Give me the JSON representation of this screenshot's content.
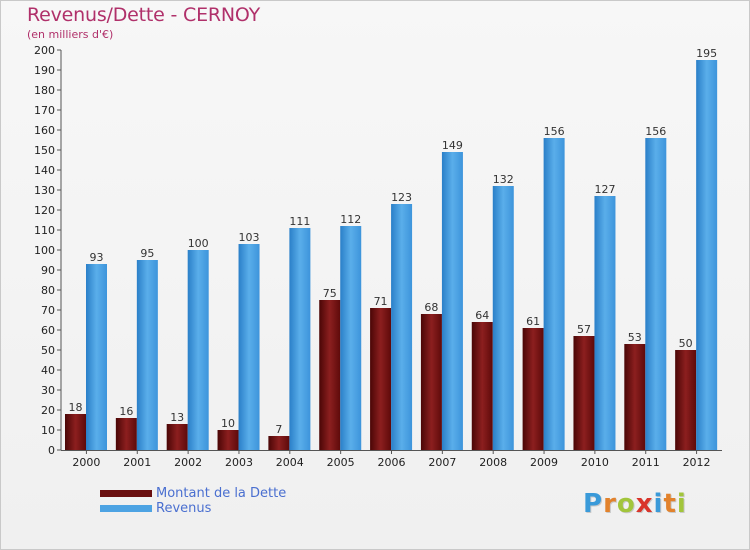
{
  "chart_data": {
    "type": "bar",
    "title": "Revenus/Dette - CERNOY",
    "subtitle": "(en milliers d'€)",
    "categories": [
      "2000",
      "2001",
      "2002",
      "2003",
      "2004",
      "2005",
      "2006",
      "2007",
      "2008",
      "2009",
      "2010",
      "2011",
      "2012"
    ],
    "series": [
      {
        "name": "Montant de la Dette",
        "color": "#7a1515",
        "values": [
          18,
          16,
          13,
          10,
          7,
          75,
          71,
          68,
          64,
          61,
          57,
          53,
          50
        ]
      },
      {
        "name": "Revenus",
        "color": "#4da3e3",
        "values": [
          93,
          95,
          100,
          103,
          111,
          112,
          123,
          149,
          132,
          156,
          127,
          156,
          195
        ]
      }
    ],
    "ylim": [
      0,
      200
    ],
    "ytick_step": 10,
    "xlabel": "",
    "ylabel": "",
    "grid": false,
    "legend_position": "bottom-left"
  },
  "logo": {
    "text": "Proxiti",
    "letter_colors": [
      "#3a9ad9",
      "#e2822c",
      "#a2c53b",
      "#d9352b",
      "#3a9ad9",
      "#e2822c",
      "#a2c53b"
    ]
  }
}
